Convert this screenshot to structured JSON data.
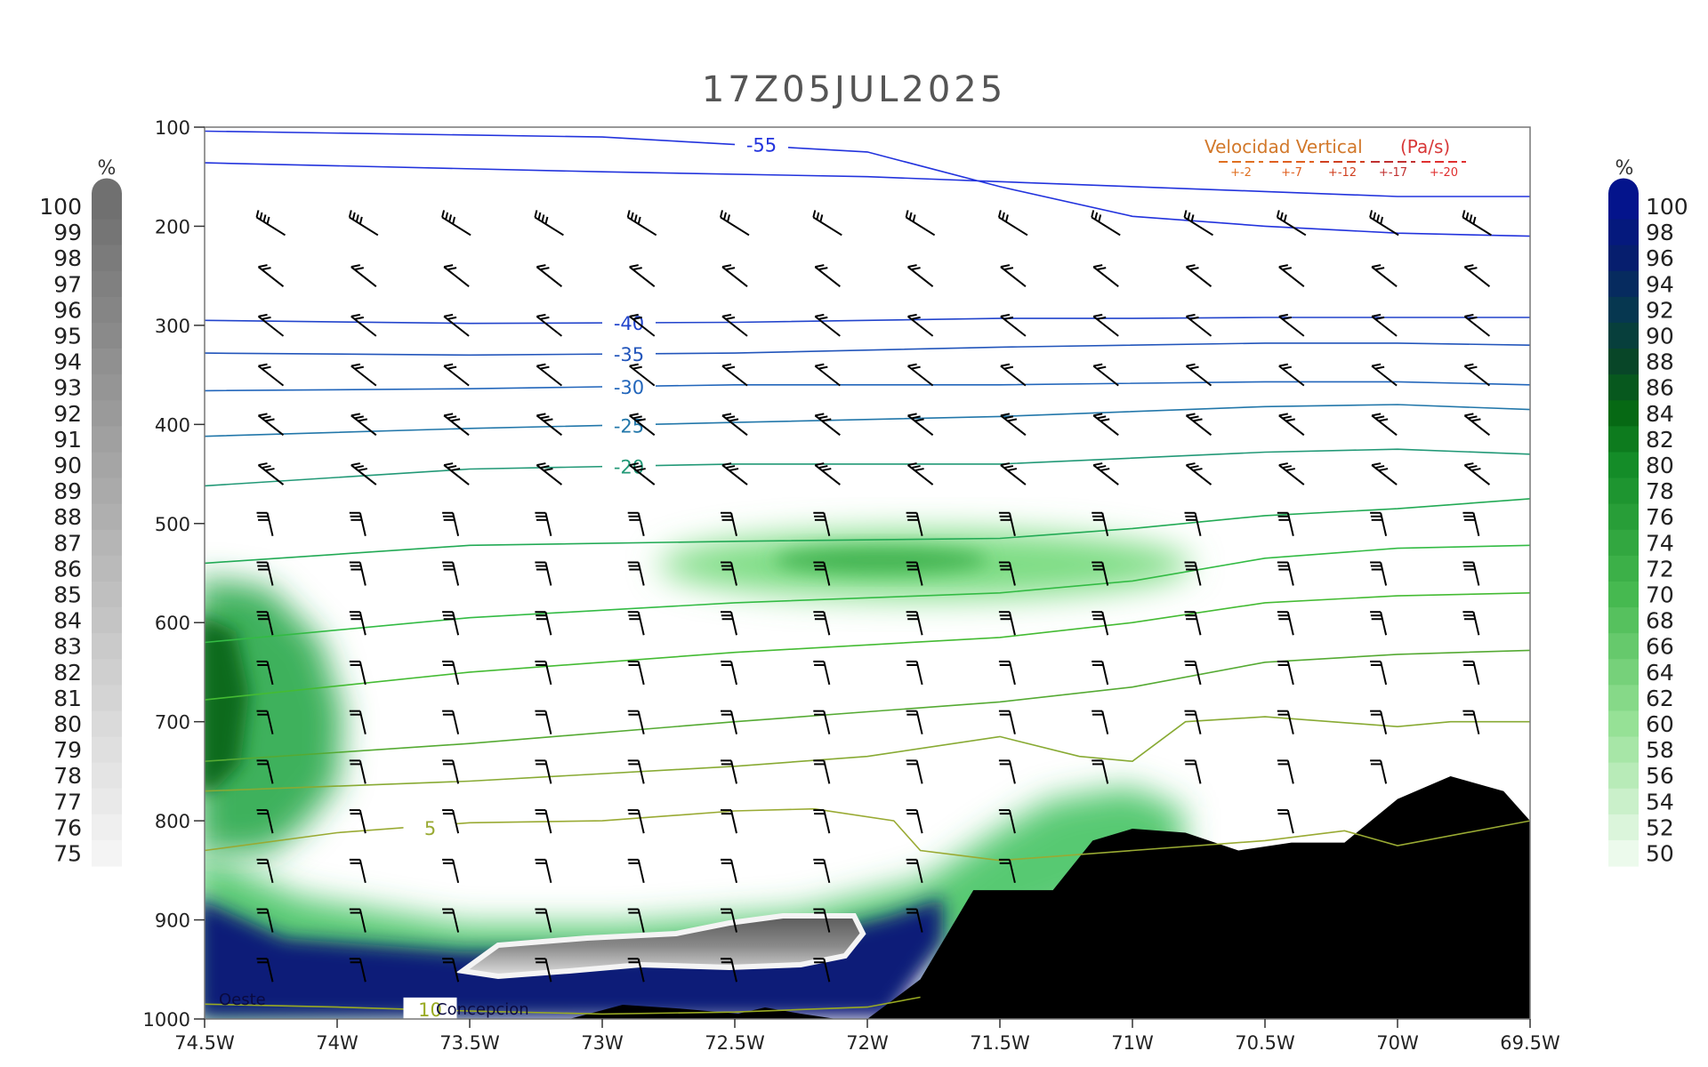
{
  "chart_data": {
    "type": "cross-section",
    "title": "17Z05JUL2025",
    "x_ticks": [
      "74.5W",
      "74W",
      "73.5W",
      "73W",
      "72.5W",
      "72W",
      "71.5W",
      "71W",
      "70.5W",
      "70W",
      "69.5W"
    ],
    "x_range": [
      -74.5,
      -69.5
    ],
    "y_ticks": [
      100,
      200,
      300,
      400,
      500,
      600,
      700,
      800,
      900,
      1000
    ],
    "y_range": [
      100,
      1000
    ],
    "y_axis": "pressure (hPa), inverted",
    "grid": false,
    "left_colorbar": {
      "unit": "%",
      "color_scheme": "grayscale",
      "levels": [
        100,
        99,
        98,
        97,
        96,
        95,
        94,
        93,
        92,
        91,
        90,
        89,
        88,
        87,
        86,
        85,
        84,
        83,
        82,
        81,
        80,
        79,
        78,
        77,
        76,
        75
      ]
    },
    "right_colorbar": {
      "unit": "%",
      "color_scheme": "green-to-navy",
      "levels": [
        100,
        98,
        96,
        94,
        92,
        90,
        88,
        86,
        84,
        82,
        80,
        78,
        76,
        74,
        72,
        70,
        68,
        66,
        64,
        62,
        60,
        58,
        56,
        54,
        52,
        50
      ]
    },
    "vertical_velocity_legend": {
      "title": "Velocidad Vertical",
      "units": "(Pa/s)",
      "values": [
        "+-2",
        "+-7",
        "+-12",
        "+-17",
        "+-20"
      ],
      "colors": [
        "#e07020",
        "#e06020",
        "#d04020",
        "#c03030",
        "#e03030"
      ]
    },
    "isotherms": [
      {
        "label": "-55",
        "color": "#2233dd",
        "points": [
          [
            -74.5,
            104
          ],
          [
            -73,
            110
          ],
          [
            -72,
            125
          ],
          [
            -71.5,
            160
          ],
          [
            -71,
            190
          ],
          [
            -70.5,
            200
          ],
          [
            -70,
            207
          ],
          [
            -69.5,
            210
          ]
        ]
      },
      {
        "label": "",
        "color": "#2233dd",
        "points": [
          [
            -74.5,
            136
          ],
          [
            -73,
            145
          ],
          [
            -72,
            150
          ],
          [
            -71.5,
            155
          ],
          [
            -71,
            160
          ],
          [
            -70.5,
            165
          ],
          [
            -70,
            170
          ],
          [
            -69.5,
            170
          ]
        ]
      },
      {
        "label": "-40",
        "color": "#2244cc",
        "points": [
          [
            -74.5,
            295
          ],
          [
            -73.5,
            298
          ],
          [
            -72.5,
            297
          ],
          [
            -71.5,
            293
          ],
          [
            -71,
            293
          ],
          [
            -70.5,
            292
          ],
          [
            -70,
            292
          ],
          [
            -69.5,
            292
          ]
        ]
      },
      {
        "label": "-35",
        "color": "#2255bb",
        "points": [
          [
            -74.5,
            328
          ],
          [
            -73.5,
            330
          ],
          [
            -72.5,
            328
          ],
          [
            -71.5,
            322
          ],
          [
            -70.5,
            318
          ],
          [
            -70,
            318
          ],
          [
            -69.5,
            320
          ]
        ]
      },
      {
        "label": "-30",
        "color": "#2266bb",
        "points": [
          [
            -74.5,
            366
          ],
          [
            -73.5,
            364
          ],
          [
            -72.5,
            360
          ],
          [
            -71.5,
            360
          ],
          [
            -70.5,
            357
          ],
          [
            -70,
            357
          ],
          [
            -69.5,
            360
          ]
        ]
      },
      {
        "label": "-25",
        "color": "#2277aa",
        "points": [
          [
            -74.5,
            412
          ],
          [
            -73.5,
            404
          ],
          [
            -72.5,
            398
          ],
          [
            -71.5,
            392
          ],
          [
            -70.5,
            382
          ],
          [
            -70,
            380
          ],
          [
            -69.5,
            385
          ]
        ]
      },
      {
        "label": "-20",
        "color": "#229977",
        "points": [
          [
            -74.5,
            462
          ],
          [
            -73.5,
            445
          ],
          [
            -72.5,
            440
          ],
          [
            -71.5,
            440
          ],
          [
            -70.5,
            428
          ],
          [
            -70,
            425
          ],
          [
            -69.5,
            430
          ]
        ]
      },
      {
        "label": "",
        "color": "#22aa55",
        "points": [
          [
            -74.5,
            540
          ],
          [
            -73.5,
            522
          ],
          [
            -72.5,
            518
          ],
          [
            -71.5,
            515
          ],
          [
            -71,
            505
          ],
          [
            -70.5,
            492
          ],
          [
            -70,
            485
          ],
          [
            -69.5,
            475
          ]
        ]
      },
      {
        "label": "",
        "color": "#33bb44",
        "points": [
          [
            -74.5,
            620
          ],
          [
            -73.5,
            595
          ],
          [
            -72.5,
            580
          ],
          [
            -71.5,
            570
          ],
          [
            -71,
            558
          ],
          [
            -70.5,
            535
          ],
          [
            -70,
            525
          ],
          [
            -69.5,
            522
          ]
        ]
      },
      {
        "label": "",
        "color": "#44bb33",
        "points": [
          [
            -74.5,
            678
          ],
          [
            -73.5,
            650
          ],
          [
            -72.5,
            630
          ],
          [
            -71.5,
            615
          ],
          [
            -71,
            600
          ],
          [
            -70.5,
            580
          ],
          [
            -70,
            573
          ],
          [
            -69.5,
            570
          ]
        ]
      },
      {
        "label": "",
        "color": "#55aa33",
        "points": [
          [
            -74.5,
            740
          ],
          [
            -73.5,
            722
          ],
          [
            -72.5,
            700
          ],
          [
            -72,
            690
          ],
          [
            -71.5,
            680
          ],
          [
            -71,
            665
          ],
          [
            -70.5,
            640
          ],
          [
            -70,
            632
          ],
          [
            -69.5,
            628
          ]
        ]
      },
      {
        "label": "",
        "color": "#88aa33",
        "points": [
          [
            -74.5,
            770
          ],
          [
            -73.5,
            760
          ],
          [
            -72.5,
            745
          ],
          [
            -72,
            735
          ],
          [
            -71.5,
            715
          ],
          [
            -71.2,
            735
          ],
          [
            -71,
            740
          ],
          [
            -70.8,
            700
          ],
          [
            -70.5,
            695
          ],
          [
            -70,
            705
          ],
          [
            -69.8,
            700
          ],
          [
            -69.5,
            700
          ]
        ]
      },
      {
        "label": "5",
        "color": "#99aa33",
        "points": [
          [
            -74.5,
            830
          ],
          [
            -74,
            812
          ],
          [
            -73.5,
            802
          ],
          [
            -73,
            800
          ],
          [
            -72.5,
            790
          ],
          [
            -72.2,
            788
          ],
          [
            -71.9,
            800
          ],
          [
            -71.8,
            830
          ],
          [
            -71.5,
            840
          ],
          [
            -71,
            830
          ],
          [
            -70.5,
            820
          ],
          [
            -70.2,
            810
          ],
          [
            -70,
            825
          ],
          [
            -69.5,
            800
          ]
        ]
      },
      {
        "label": "10",
        "color": "#99aa22",
        "points": [
          [
            -74.5,
            985
          ],
          [
            -74,
            988
          ],
          [
            -73.5,
            992
          ],
          [
            -73,
            995
          ],
          [
            -72.5,
            993
          ],
          [
            -72,
            988
          ],
          [
            -71.8,
            978
          ]
        ]
      }
    ],
    "moisture_regions_percent": [
      {
        "level": 60,
        "near": "500-550 hPa, 73W-71W"
      },
      {
        "level": 80,
        "near": "550-750 hPa, 74.5W"
      },
      {
        "level": 100,
        "near": "900-1000 hPa, 74.5W-72W"
      },
      {
        "level": 70,
        "near": "780-860 hPa, 72W-71W"
      }
    ],
    "terrain_outline": [
      [
        -72,
        1000
      ],
      [
        -71.8,
        960
      ],
      [
        -71.6,
        870
      ],
      [
        -71.3,
        870
      ],
      [
        -71.15,
        820
      ],
      [
        -71,
        808
      ],
      [
        -70.8,
        812
      ],
      [
        -70.6,
        830
      ],
      [
        -70.4,
        822
      ],
      [
        -70.2,
        822
      ],
      [
        -70,
        778
      ],
      [
        -69.8,
        755
      ],
      [
        -69.6,
        770
      ],
      [
        -69.4,
        830
      ],
      [
        -69.2,
        862
      ],
      [
        -69,
        858
      ],
      [
        -68.8,
        858
      ],
      [
        -68.6,
        1000
      ]
    ],
    "annotations": [
      "Oeste",
      "Concepcion"
    ],
    "wind_barbs": {
      "x": [
        -74.25,
        -73.9,
        -73.55,
        -73.2,
        -72.85,
        -72.5,
        -72.15,
        -71.8,
        -71.45,
        -71.1,
        -70.75,
        -70.4,
        -70.05,
        -69.7
      ],
      "levels": [
        200,
        250,
        300,
        350,
        400,
        450,
        500,
        550,
        600,
        650,
        700,
        750,
        800,
        850,
        900,
        950
      ]
    }
  }
}
